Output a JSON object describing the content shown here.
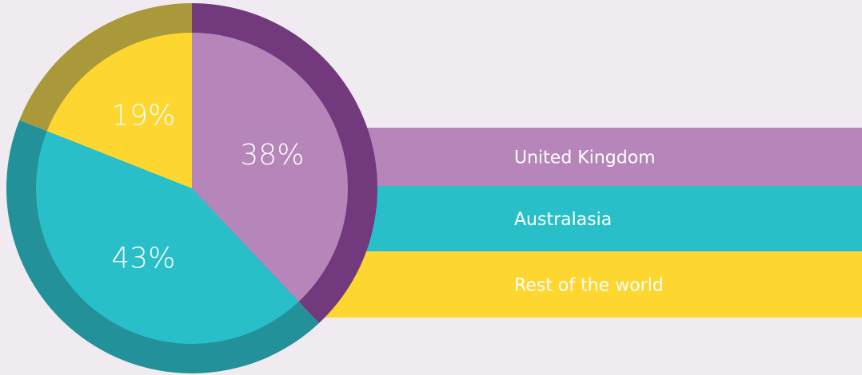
{
  "chart_data": {
    "type": "pie",
    "categories": [
      "United Kingdom",
      "Australasia",
      "Rest of the world"
    ],
    "values": [
      38,
      43,
      19
    ],
    "value_labels": [
      "38%",
      "43%",
      "19%"
    ],
    "colors": [
      "#b685b9",
      "#29bfc9",
      "#fed630"
    ],
    "ring_colors": [
      "#723a7d",
      "#229199",
      "#a9993b"
    ]
  }
}
